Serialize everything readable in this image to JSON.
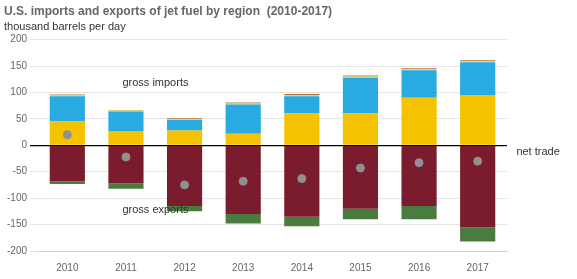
{
  "chart_data": {
    "type": "bar",
    "title": "U.S. imports and exports of jet fuel by region  (2010-2017)",
    "subtitle": "thousand barrels per day",
    "categories": [
      "2010",
      "2011",
      "2012",
      "2013",
      "2014",
      "2015",
      "2016",
      "2017"
    ],
    "series": [
      {
        "color": "#f5c200",
        "values": [
          45,
          27,
          28,
          22,
          60,
          60,
          90,
          95
        ]
      },
      {
        "color": "#29abe2",
        "values": [
          48,
          37,
          20,
          55,
          33,
          68,
          52,
          62
        ]
      },
      {
        "color": "#c8e06e",
        "values": [
          2,
          2,
          2,
          2,
          2,
          2,
          2,
          2
        ]
      },
      {
        "color": "#b87333",
        "values": [
          1,
          1,
          1,
          2,
          2,
          2,
          2,
          2
        ]
      },
      {
        "color": "#7b1c2e",
        "values": [
          -68,
          -72,
          -115,
          -130,
          -135,
          -120,
          -115,
          -155
        ]
      },
      {
        "color": "#4a7c3f",
        "values": [
          -5,
          -10,
          -10,
          -18,
          -18,
          -20,
          -25,
          -27
        ]
      },
      {
        "type": "scatter",
        "color": "#909090",
        "marker": "circle",
        "values": [
          20,
          -22,
          -75,
          -68,
          -63,
          -43,
          -33,
          -30
        ]
      }
    ],
    "stacked": true,
    "ylim": [
      -200,
      200
    ],
    "yticks": [
      -200,
      -150,
      -100,
      -50,
      0,
      50,
      100,
      150,
      200
    ],
    "grid": true,
    "annotations": [
      "gross imports",
      "gross exports",
      "net trade"
    ]
  }
}
